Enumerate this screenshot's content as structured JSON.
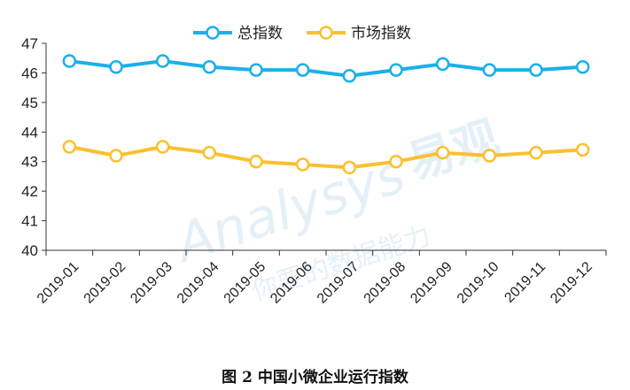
{
  "chart_data": {
    "type": "line",
    "categories": [
      "2019-01",
      "2019-02",
      "2019-03",
      "2019-04",
      "2019-05",
      "2019-06",
      "2019-07",
      "2019-08",
      "2019-09",
      "2019-10",
      "2019-11",
      "2019-12"
    ],
    "series": [
      {
        "name": "总指数",
        "color": "#1ab0ea",
        "values": [
          46.4,
          46.2,
          46.4,
          46.2,
          46.1,
          46.1,
          45.9,
          46.1,
          46.3,
          46.1,
          46.1,
          46.2
        ]
      },
      {
        "name": "市场指数",
        "color": "#fbc02d",
        "values": [
          43.5,
          43.2,
          43.5,
          43.3,
          43.0,
          42.9,
          42.8,
          43.0,
          43.3,
          43.2,
          43.3,
          43.4
        ]
      }
    ],
    "yticks": [
      40,
      41,
      42,
      43,
      44,
      45,
      46,
      47
    ],
    "ylim": [
      40,
      47
    ],
    "grid": false,
    "legend": "top-center"
  },
  "caption": "图 2  中国小微企业运行指数",
  "watermark": {
    "brand": "易观",
    "latin": "Analysys",
    "slogan": "你要的数据能力"
  }
}
